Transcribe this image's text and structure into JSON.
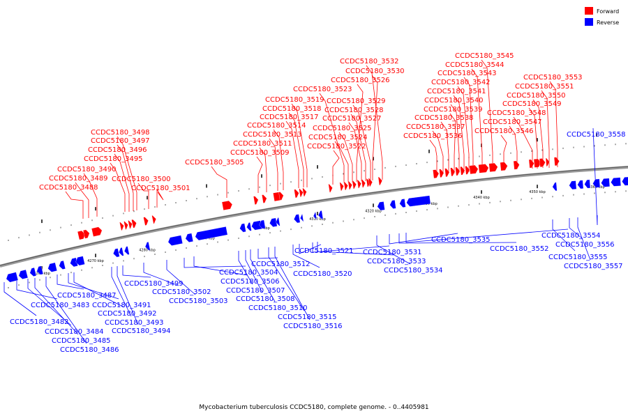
{
  "caption": "Mycobacterium tuberculosis CCDC5180, complete genome. - 0..4405981",
  "legend": [
    {
      "label": "Forward",
      "color": "#ff0000"
    },
    {
      "label": "Reverse",
      "color": "#0000ff"
    }
  ],
  "axis_ticks": [
    "4260 kbp",
    "4270 kbp",
    "4280 kbp",
    "4290 kbp",
    "4300 kbp",
    "4310 kbp",
    "4320 kbp",
    "4330 kbp",
    "4340 kbp",
    "4350 kbp",
    "4360 kbp"
  ],
  "forward_genes": [
    "CCDC5180_3488",
    "CCDC5180_3489",
    "CCDC5180_3490",
    "CCDC5180_3495",
    "CCDC5180_3496",
    "CCDC5180_3497",
    "CCDC5180_3498",
    "CCDC5180_3500",
    "CCDC5180_3501",
    "CCDC5180_3505",
    "CCDC5180_3509",
    "CCDC5180_3511",
    "CCDC5180_3513",
    "CCDC5180_3514",
    "CCDC5180_3517",
    "CCDC5180_3518",
    "CCDC5180_3519",
    "CCDC5180_3522",
    "CCDC5180_3523",
    "CCDC5180_3524",
    "CCDC5180_3525",
    "CCDC5180_3526",
    "CCDC5180_3527",
    "CCDC5180_3528",
    "CCDC5180_3529",
    "CCDC5180_3530",
    "CCDC5180_3532",
    "CCDC5180_3536",
    "CCDC5180_3537",
    "CCDC5180_3538",
    "CCDC5180_3539",
    "CCDC5180_3540",
    "CCDC5180_3541",
    "CCDC5180_3542",
    "CCDC5180_3543",
    "CCDC5180_3544",
    "CCDC5180_3545",
    "CCDC5180_3546",
    "CCDC5180_3547",
    "CCDC5180_3548",
    "CCDC5180_3549",
    "CCDC5180_3550",
    "CCDC5180_3551",
    "CCDC5180_3553"
  ],
  "reverse_genes": [
    "CCDC5180_3482",
    "CCDC5180_3483",
    "CCDC5180_3484",
    "CCDC5180_3485",
    "CCDC5180_3486",
    "CCDC5180_3487",
    "CCDC5180_3491",
    "CCDC5180_3492",
    "CCDC5180_3493",
    "CCDC5180_3494",
    "CCDC5180_3499",
    "CCDC5180_3502",
    "CCDC5180_3503",
    "CCDC5180_3504",
    "CCDC5180_3506",
    "CCDC5180_3507",
    "CCDC5180_3508",
    "CCDC5180_3510",
    "CCDC5180_3512",
    "CCDC5180_3515",
    "CCDC5180_3516",
    "CCDC5180_3520",
    "CCDC5180_3521",
    "CCDC5180_3531",
    "CCDC5180_3533",
    "CCDC5180_3534",
    "CCDC5180_3535",
    "CCDC5180_3552",
    "CCDC5180_3554",
    "CCDC5180_3555",
    "CCDC5180_3556",
    "CCDC5180_3557",
    "CCDC5180_3558"
  ]
}
